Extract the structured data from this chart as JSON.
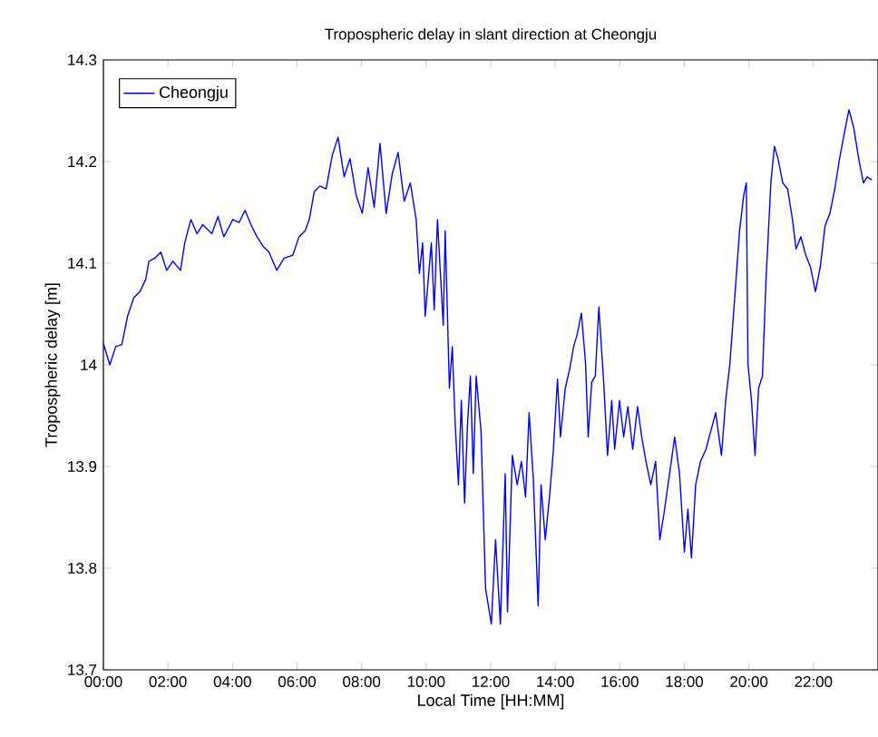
{
  "chart_data": {
    "type": "line",
    "title": "Tropospheric delay in slant direction at Cheongju",
    "xlabel": "Local Time [HH:MM]",
    "ylabel": "Tropospheric delay [m]",
    "xlim": [
      0,
      24
    ],
    "ylim": [
      13.7,
      14.3
    ],
    "xticks": [
      {
        "value": 0,
        "label": "00:00"
      },
      {
        "value": 2,
        "label": "02:00"
      },
      {
        "value": 4,
        "label": "04:00"
      },
      {
        "value": 6,
        "label": "06:00"
      },
      {
        "value": 8,
        "label": "08:00"
      },
      {
        "value": 10,
        "label": "10:00"
      },
      {
        "value": 12,
        "label": "12:00"
      },
      {
        "value": 14,
        "label": "14:00"
      },
      {
        "value": 16,
        "label": "16:00"
      },
      {
        "value": 18,
        "label": "18:00"
      },
      {
        "value": 20,
        "label": "20:00"
      },
      {
        "value": 22,
        "label": "22:00"
      }
    ],
    "yticks": [
      13.7,
      13.8,
      13.9,
      14,
      14.1,
      14.2,
      14.3
    ],
    "grid": false,
    "legend": "top left",
    "marker": "none",
    "line_style": "solid",
    "series": [
      {
        "name": "Cheongju",
        "color": "#0000ff",
        "x": [
          0,
          0.2,
          0.38,
          0.57,
          0.75,
          0.94,
          1.13,
          1.31,
          1.41,
          1.59,
          1.78,
          1.96,
          2.15,
          2.39,
          2.52,
          2.71,
          2.9,
          3.08,
          3.36,
          3.55,
          3.73,
          4.01,
          4.2,
          4.39,
          4.57,
          4.76,
          4.94,
          5.13,
          5.37,
          5.6,
          5.87,
          6.06,
          6.25,
          6.38,
          6.53,
          6.71,
          6.9,
          7.09,
          7.27,
          7.46,
          7.64,
          7.83,
          8.02,
          8.2,
          8.39,
          8.57,
          8.76,
          8.95,
          9.13,
          9.32,
          9.51,
          9.69,
          9.79,
          9.89,
          9.97,
          10.16,
          10.25,
          10.35,
          10.53,
          10.59,
          10.72,
          10.81,
          10.9,
          11.0,
          11.09,
          11.19,
          11.28,
          11.37,
          11.46,
          11.55,
          11.7,
          11.84,
          12.02,
          12.15,
          12.3,
          12.45,
          12.52,
          12.67,
          12.82,
          12.95,
          13.08,
          13.19,
          13.32,
          13.47,
          13.56,
          13.69,
          13.82,
          13.93,
          14.07,
          14.16,
          14.31,
          14.44,
          14.57,
          14.68,
          14.81,
          14.94,
          15.02,
          15.13,
          15.24,
          15.35,
          15.5,
          15.62,
          15.75,
          15.84,
          15.99,
          16.12,
          16.25,
          16.4,
          16.55,
          16.68,
          16.81,
          16.96,
          17.11,
          17.24,
          17.36,
          17.52,
          17.7,
          17.85,
          18.0,
          18.11,
          18.22,
          18.35,
          18.5,
          18.67,
          18.82,
          18.97,
          19.15,
          19.28,
          19.41,
          19.56,
          19.71,
          19.84,
          19.92,
          19.97,
          20.08,
          20.19,
          20.3,
          20.42,
          20.53,
          20.68,
          20.79,
          20.9,
          21.05,
          21.2,
          21.35,
          21.46,
          21.61,
          21.76,
          21.91,
          22.06,
          22.21,
          22.36,
          22.51,
          22.66,
          22.81,
          22.95,
          23.1,
          23.25,
          23.4,
          23.55,
          23.66,
          23.81
        ],
        "values": [
          14.021,
          14.0,
          14.018,
          14.02,
          14.048,
          14.066,
          14.072,
          14.084,
          14.102,
          14.105,
          14.111,
          14.093,
          14.102,
          14.093,
          14.12,
          14.143,
          14.129,
          14.138,
          14.129,
          14.146,
          14.126,
          14.143,
          14.14,
          14.152,
          14.138,
          14.126,
          14.117,
          14.111,
          14.093,
          14.105,
          14.108,
          14.126,
          14.132,
          14.143,
          14.17,
          14.176,
          14.173,
          14.206,
          14.224,
          14.185,
          14.203,
          14.167,
          14.149,
          14.194,
          14.155,
          14.218,
          14.149,
          14.188,
          14.209,
          14.161,
          14.179,
          14.143,
          14.09,
          14.12,
          14.048,
          14.12,
          14.054,
          14.143,
          14.039,
          14.132,
          13.977,
          14.018,
          13.941,
          13.882,
          13.965,
          13.864,
          13.941,
          13.989,
          13.893,
          13.989,
          13.935,
          13.78,
          13.745,
          13.828,
          13.745,
          13.893,
          13.757,
          13.911,
          13.882,
          13.905,
          13.87,
          13.953,
          13.888,
          13.763,
          13.882,
          13.828,
          13.87,
          13.911,
          13.986,
          13.929,
          13.977,
          13.995,
          14.018,
          14.03,
          14.051,
          14.001,
          13.929,
          13.983,
          13.989,
          14.057,
          13.983,
          13.911,
          13.965,
          13.917,
          13.965,
          13.929,
          13.959,
          13.917,
          13.959,
          13.929,
          13.905,
          13.882,
          13.905,
          13.828,
          13.852,
          13.888,
          13.929,
          13.893,
          13.816,
          13.858,
          13.81,
          13.882,
          13.905,
          13.917,
          13.935,
          13.953,
          13.911,
          13.965,
          14.001,
          14.066,
          14.132,
          14.167,
          14.179,
          14.001,
          13.965,
          13.911,
          13.977,
          13.989,
          14.084,
          14.179,
          14.215,
          14.203,
          14.179,
          14.173,
          14.143,
          14.114,
          14.126,
          14.108,
          14.096,
          14.072,
          14.096,
          14.137,
          14.149,
          14.173,
          14.203,
          14.227,
          14.251,
          14.233,
          14.203,
          14.179,
          14.185,
          14.182
        ]
      }
    ]
  }
}
